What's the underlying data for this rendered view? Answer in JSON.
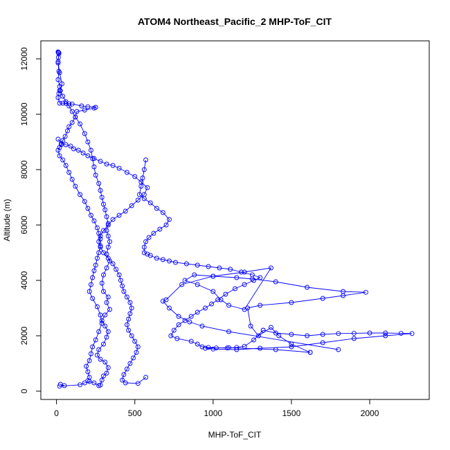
{
  "chart_data": {
    "type": "line",
    "title": "ATOM4 Northeast_Pacific_2 MHP-ToF_CIT",
    "xlabel": "MHP-ToF_CIT",
    "ylabel": "Altitude (m)",
    "xlim": [
      -100,
      2380
    ],
    "ylim": [
      -300,
      12650
    ],
    "xticks": [
      0,
      500,
      1000,
      1500,
      2000
    ],
    "yticks": [
      0,
      2000,
      4000,
      6000,
      8000,
      10000,
      12000
    ],
    "xtick_labels": [
      "0",
      "500",
      "1000",
      "1500",
      "2000"
    ],
    "ytick_labels": [
      "0",
      "2000",
      "4000",
      "6000",
      "8000",
      "10000",
      "12000"
    ],
    "markers": "open-circle",
    "grid": false,
    "legend": "none",
    "series_color": "#0000ff",
    "series": [
      {
        "points": [
          [
            25,
            250
          ],
          [
            50,
            200
          ],
          [
            20,
            180
          ],
          [
            150,
            230
          ],
          [
            180,
            300
          ],
          [
            210,
            350
          ],
          [
            240,
            300
          ],
          [
            270,
            200
          ],
          [
            280,
            220
          ],
          [
            290,
            400
          ],
          [
            300,
            550
          ],
          [
            320,
            650
          ],
          [
            330,
            850
          ],
          [
            310,
            1050
          ],
          [
            280,
            1150
          ],
          [
            260,
            1300
          ],
          [
            270,
            1500
          ],
          [
            300,
            1700
          ],
          [
            320,
            1950
          ],
          [
            330,
            2150
          ],
          [
            310,
            2350
          ],
          [
            290,
            2550
          ],
          [
            310,
            2750
          ],
          [
            340,
            2950
          ],
          [
            320,
            3200
          ],
          [
            330,
            3400
          ],
          [
            300,
            3600
          ],
          [
            290,
            3900
          ],
          [
            300,
            4200
          ],
          [
            320,
            4450
          ],
          [
            340,
            4700
          ],
          [
            320,
            4950
          ],
          [
            330,
            5200
          ],
          [
            340,
            5400
          ],
          [
            330,
            5600
          ],
          [
            320,
            5800
          ],
          [
            330,
            6050
          ],
          [
            320,
            6300
          ],
          [
            310,
            6550
          ],
          [
            300,
            6750
          ],
          [
            290,
            7000
          ],
          [
            280,
            7250
          ],
          [
            270,
            7500
          ],
          [
            250,
            7800
          ],
          [
            240,
            8100
          ],
          [
            230,
            8400
          ],
          [
            220,
            8700
          ],
          [
            200,
            9000
          ],
          [
            180,
            9300
          ],
          [
            150,
            9650
          ],
          [
            120,
            9900
          ],
          [
            100,
            10100
          ],
          [
            80,
            10300
          ],
          [
            60,
            10450
          ],
          [
            40,
            10650
          ],
          [
            25,
            10850
          ],
          [
            20,
            11000
          ],
          [
            10,
            11250
          ],
          [
            15,
            11550
          ],
          [
            10,
            11850
          ],
          [
            12,
            12050
          ],
          [
            15,
            12220
          ],
          [
            10,
            12250
          ]
        ]
      },
      {
        "points": [
          [
            12,
            12230
          ],
          [
            15,
            12180
          ],
          [
            10,
            11900
          ],
          [
            20,
            11500
          ],
          [
            35,
            11100
          ],
          [
            20,
            10850
          ],
          [
            15,
            10750
          ],
          [
            10,
            10600
          ],
          [
            20,
            10400
          ],
          [
            40,
            10400
          ],
          [
            60,
            10390
          ],
          [
            80,
            10380
          ],
          [
            100,
            10370
          ],
          [
            160,
            10300
          ],
          [
            200,
            10270
          ],
          [
            250,
            10250
          ],
          [
            240,
            10220
          ],
          [
            180,
            10150
          ],
          [
            130,
            10100
          ],
          [
            120,
            9900
          ],
          [
            100,
            9700
          ],
          [
            80,
            9550
          ],
          [
            70,
            9400
          ],
          [
            55,
            9200
          ],
          [
            40,
            9050
          ],
          [
            30,
            8900
          ],
          [
            20,
            8800
          ],
          [
            10,
            8700
          ],
          [
            20,
            8500
          ],
          [
            40,
            8350
          ],
          [
            60,
            8150
          ],
          [
            80,
            7900
          ],
          [
            100,
            7650
          ],
          [
            120,
            7400
          ],
          [
            150,
            7100
          ],
          [
            180,
            6850
          ],
          [
            200,
            6600
          ],
          [
            220,
            6350
          ],
          [
            240,
            6150
          ],
          [
            260,
            5900
          ],
          [
            270,
            5700
          ],
          [
            280,
            5500
          ],
          [
            280,
            5250
          ],
          [
            270,
            5000
          ],
          [
            260,
            4800
          ],
          [
            250,
            4550
          ],
          [
            240,
            4350
          ],
          [
            230,
            4100
          ],
          [
            220,
            3850
          ],
          [
            210,
            3600
          ],
          [
            230,
            3350
          ],
          [
            260,
            3050
          ],
          [
            280,
            2750
          ],
          [
            290,
            2450
          ],
          [
            270,
            2150
          ],
          [
            250,
            1850
          ],
          [
            230,
            1600
          ],
          [
            220,
            1350
          ],
          [
            210,
            1100
          ],
          [
            190,
            900
          ],
          [
            200,
            700
          ],
          [
            210,
            500
          ],
          [
            200,
            380
          ]
        ]
      },
      {
        "points": [
          [
            10,
            9100
          ],
          [
            30,
            8950
          ],
          [
            60,
            8900
          ],
          [
            90,
            8850
          ],
          [
            110,
            8750
          ],
          [
            140,
            8700
          ],
          [
            170,
            8600
          ],
          [
            200,
            8500
          ],
          [
            240,
            8400
          ],
          [
            280,
            8300
          ],
          [
            320,
            8200
          ],
          [
            360,
            8150
          ],
          [
            400,
            8050
          ],
          [
            450,
            7900
          ],
          [
            500,
            7750
          ],
          [
            540,
            7550
          ],
          [
            580,
            7350
          ],
          [
            560,
            7100
          ],
          [
            520,
            6900
          ],
          [
            480,
            6700
          ],
          [
            440,
            6500
          ],
          [
            400,
            6350
          ],
          [
            360,
            6200
          ],
          [
            330,
            6000
          ],
          [
            300,
            5800
          ],
          [
            280,
            5600
          ],
          [
            270,
            5400
          ],
          [
            280,
            5200
          ],
          [
            300,
            5000
          ],
          [
            330,
            4800
          ],
          [
            360,
            4600
          ],
          [
            380,
            4400
          ],
          [
            400,
            4200
          ],
          [
            410,
            4000
          ],
          [
            420,
            3800
          ],
          [
            430,
            3600
          ],
          [
            450,
            3400
          ],
          [
            470,
            3200
          ],
          [
            480,
            3000
          ],
          [
            470,
            2800
          ],
          [
            460,
            2600
          ],
          [
            450,
            2400
          ],
          [
            460,
            2200
          ],
          [
            480,
            2000
          ],
          [
            500,
            1800
          ],
          [
            520,
            1600
          ],
          [
            510,
            1400
          ],
          [
            490,
            1200
          ],
          [
            470,
            1000
          ],
          [
            450,
            800
          ],
          [
            430,
            600
          ],
          [
            420,
            400
          ],
          [
            440,
            300
          ],
          [
            520,
            280
          ],
          [
            570,
            500
          ]
        ]
      },
      {
        "points": [
          [
            570,
            8350
          ],
          [
            560,
            8000
          ],
          [
            550,
            7700
          ],
          [
            540,
            7400
          ],
          [
            530,
            7100
          ],
          [
            560,
            6950
          ],
          [
            600,
            6800
          ],
          [
            640,
            6600
          ],
          [
            680,
            6450
          ],
          [
            720,
            6200
          ],
          [
            700,
            6000
          ],
          [
            660,
            5850
          ],
          [
            620,
            5700
          ],
          [
            590,
            5550
          ],
          [
            570,
            5400
          ],
          [
            560,
            5200
          ],
          [
            560,
            5000
          ],
          [
            580,
            4950
          ],
          [
            600,
            4900
          ],
          [
            640,
            4800
          ],
          [
            680,
            4750
          ],
          [
            720,
            4700
          ],
          [
            760,
            4650
          ],
          [
            830,
            4600
          ],
          [
            900,
            4550
          ],
          [
            970,
            4500
          ],
          [
            1040,
            4450
          ],
          [
            1110,
            4400
          ],
          [
            1180,
            4300
          ],
          [
            1250,
            4200
          ],
          [
            1300,
            4100
          ],
          [
            1260,
            4000
          ],
          [
            1200,
            3850
          ],
          [
            1140,
            3700
          ],
          [
            1080,
            3500
          ],
          [
            1030,
            3300
          ],
          [
            990,
            3150
          ],
          [
            950,
            3000
          ],
          [
            900,
            2850
          ],
          [
            860,
            2700
          ],
          [
            820,
            2550
          ],
          [
            780,
            2400
          ],
          [
            750,
            2200
          ],
          [
            730,
            2000
          ],
          [
            770,
            1900
          ],
          [
            860,
            1800
          ],
          [
            900,
            1700
          ],
          [
            930,
            1600
          ],
          [
            970,
            1580
          ],
          [
            1020,
            1560
          ],
          [
            1090,
            1560
          ],
          [
            1150,
            1580
          ],
          [
            1200,
            1620
          ],
          [
            1260,
            1850
          ],
          [
            1320,
            2200
          ]
        ]
      },
      {
        "points": [
          [
            1320,
            2200
          ],
          [
            1400,
            2100
          ],
          [
            1500,
            2050
          ],
          [
            1600,
            2000
          ],
          [
            1700,
            2050
          ],
          [
            1800,
            2080
          ],
          [
            1900,
            2090
          ],
          [
            2000,
            2100
          ],
          [
            2100,
            2100
          ],
          [
            2200,
            2090
          ],
          [
            2270,
            2080
          ],
          [
            2100,
            2000
          ],
          [
            1900,
            1900
          ],
          [
            1700,
            1750
          ],
          [
            1500,
            1600
          ],
          [
            1300,
            1550
          ],
          [
            1150,
            1500
          ],
          [
            1000,
            1520
          ],
          [
            950,
            1550
          ],
          [
            1100,
            1570
          ],
          [
            1400,
            1500
          ],
          [
            1620,
            1400
          ]
        ]
      },
      {
        "points": [
          [
            1620,
            1400
          ],
          [
            1500,
            1700
          ],
          [
            1420,
            2000
          ],
          [
            1370,
            2300
          ],
          [
            1290,
            2000
          ],
          [
            1240,
            2350
          ],
          [
            1220,
            3000
          ],
          [
            1300,
            3100
          ],
          [
            1500,
            3200
          ],
          [
            1700,
            3350
          ],
          [
            1830,
            3450
          ],
          [
            1975,
            3570
          ],
          [
            1830,
            3600
          ],
          [
            1600,
            3750
          ],
          [
            1400,
            3950
          ],
          [
            1250,
            4050
          ],
          [
            1150,
            4100
          ],
          [
            1000,
            4150
          ],
          [
            880,
            4200
          ],
          [
            820,
            4000
          ],
          [
            900,
            3850
          ],
          [
            1000,
            3600
          ],
          [
            1050,
            3300
          ],
          [
            1100,
            3100
          ],
          [
            1200,
            2950
          ],
          [
            1370,
            4450
          ],
          [
            1200,
            4300
          ],
          [
            1000,
            4150
          ],
          [
            800,
            3850
          ],
          [
            700,
            3300
          ],
          [
            680,
            3250
          ],
          [
            720,
            3000
          ],
          [
            780,
            2700
          ],
          [
            850,
            2500
          ],
          [
            930,
            2350
          ],
          [
            1100,
            2150
          ],
          [
            1800,
            1500
          ]
        ]
      }
    ]
  }
}
